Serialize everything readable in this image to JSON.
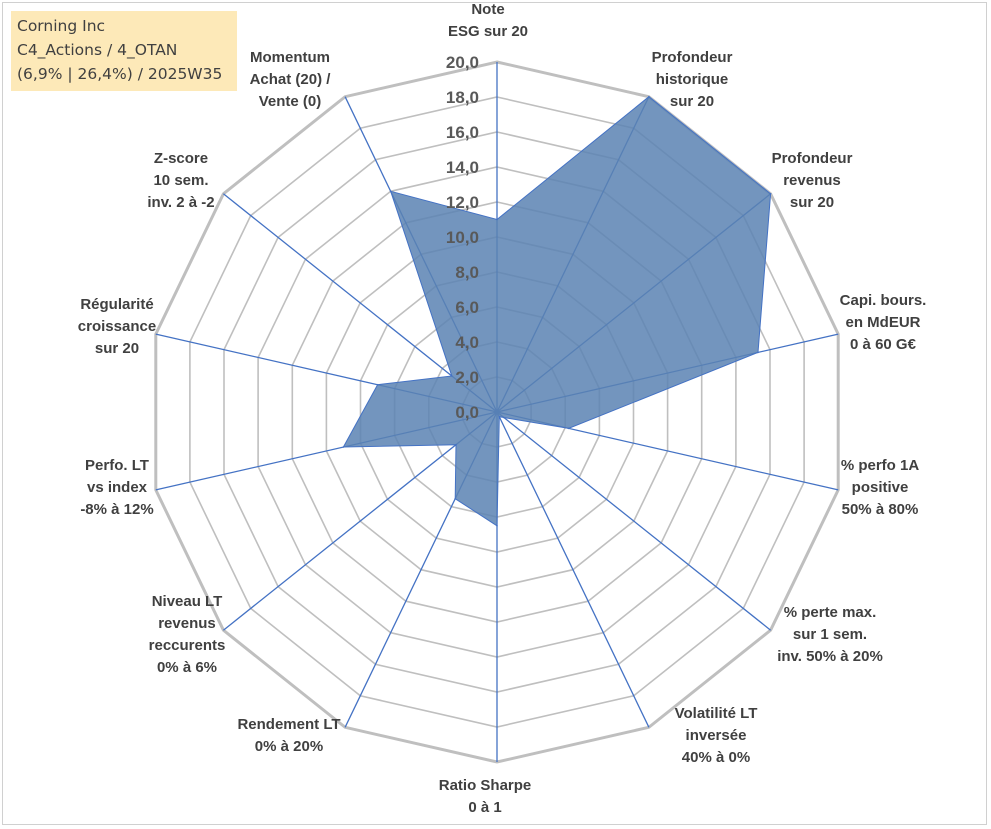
{
  "info": {
    "line1": "Corning Inc",
    "line2": "C4_Actions / 4_OTAN",
    "line3": "(6,9% | 26,4%) / 2025W35"
  },
  "colors": {
    "grid": "#bfbfbf",
    "spoke": "#4472c4",
    "fill": "#5b82b3",
    "fill_stroke": "#4472c4",
    "info_bg": "#fde9b8",
    "label": "#404040"
  },
  "chart_data": {
    "type": "radar",
    "rmin": 0,
    "rmax": 20,
    "tick_labels": [
      "0,0",
      "2,0",
      "4,0",
      "6,0",
      "8,0",
      "10,0",
      "12,0",
      "14,0",
      "16,0",
      "18,0",
      "20,0"
    ],
    "axes": [
      {
        "label": [
          "Note",
          "ESG sur 20"
        ]
      },
      {
        "label": [
          "Profondeur",
          "historique",
          "sur 20"
        ]
      },
      {
        "label": [
          "Profondeur",
          "revenus",
          "sur 20"
        ]
      },
      {
        "label": [
          "Capi. bours.",
          "en MdEUR",
          "0 à 60 G€"
        ]
      },
      {
        "label": [
          "% perfo 1A",
          "positive",
          "50% à 80%"
        ]
      },
      {
        "label": [
          "% perte max.",
          "sur 1 sem.",
          "inv. 50% à 20%"
        ]
      },
      {
        "label": [
          "Volatilité LT",
          "inversée",
          "40% à 0%"
        ]
      },
      {
        "label": [
          "Ratio Sharpe",
          "0 à 1"
        ]
      },
      {
        "label": [
          "Rendement LT",
          "0% à 20%"
        ]
      },
      {
        "label": [
          "Niveau LT",
          "revenus",
          "reccurents",
          "0% à 6%"
        ]
      },
      {
        "label": [
          "Perfo. LT",
          "vs index",
          "-8% à 12%"
        ]
      },
      {
        "label": [
          "Régularité",
          "croissance",
          "sur 20"
        ]
      },
      {
        "label": [
          "Z-score",
          "10 sem.",
          "inv. 2 à -2"
        ]
      },
      {
        "label": [
          "Momentum",
          "Achat (20) /",
          "Vente (0)"
        ]
      }
    ],
    "series": [
      {
        "values": [
          11.0,
          20.0,
          20.0,
          15.3,
          4.2,
          0.5,
          0.3,
          6.5,
          5.5,
          3.0,
          9.0,
          7.0,
          3.3,
          14.0
        ]
      }
    ]
  }
}
